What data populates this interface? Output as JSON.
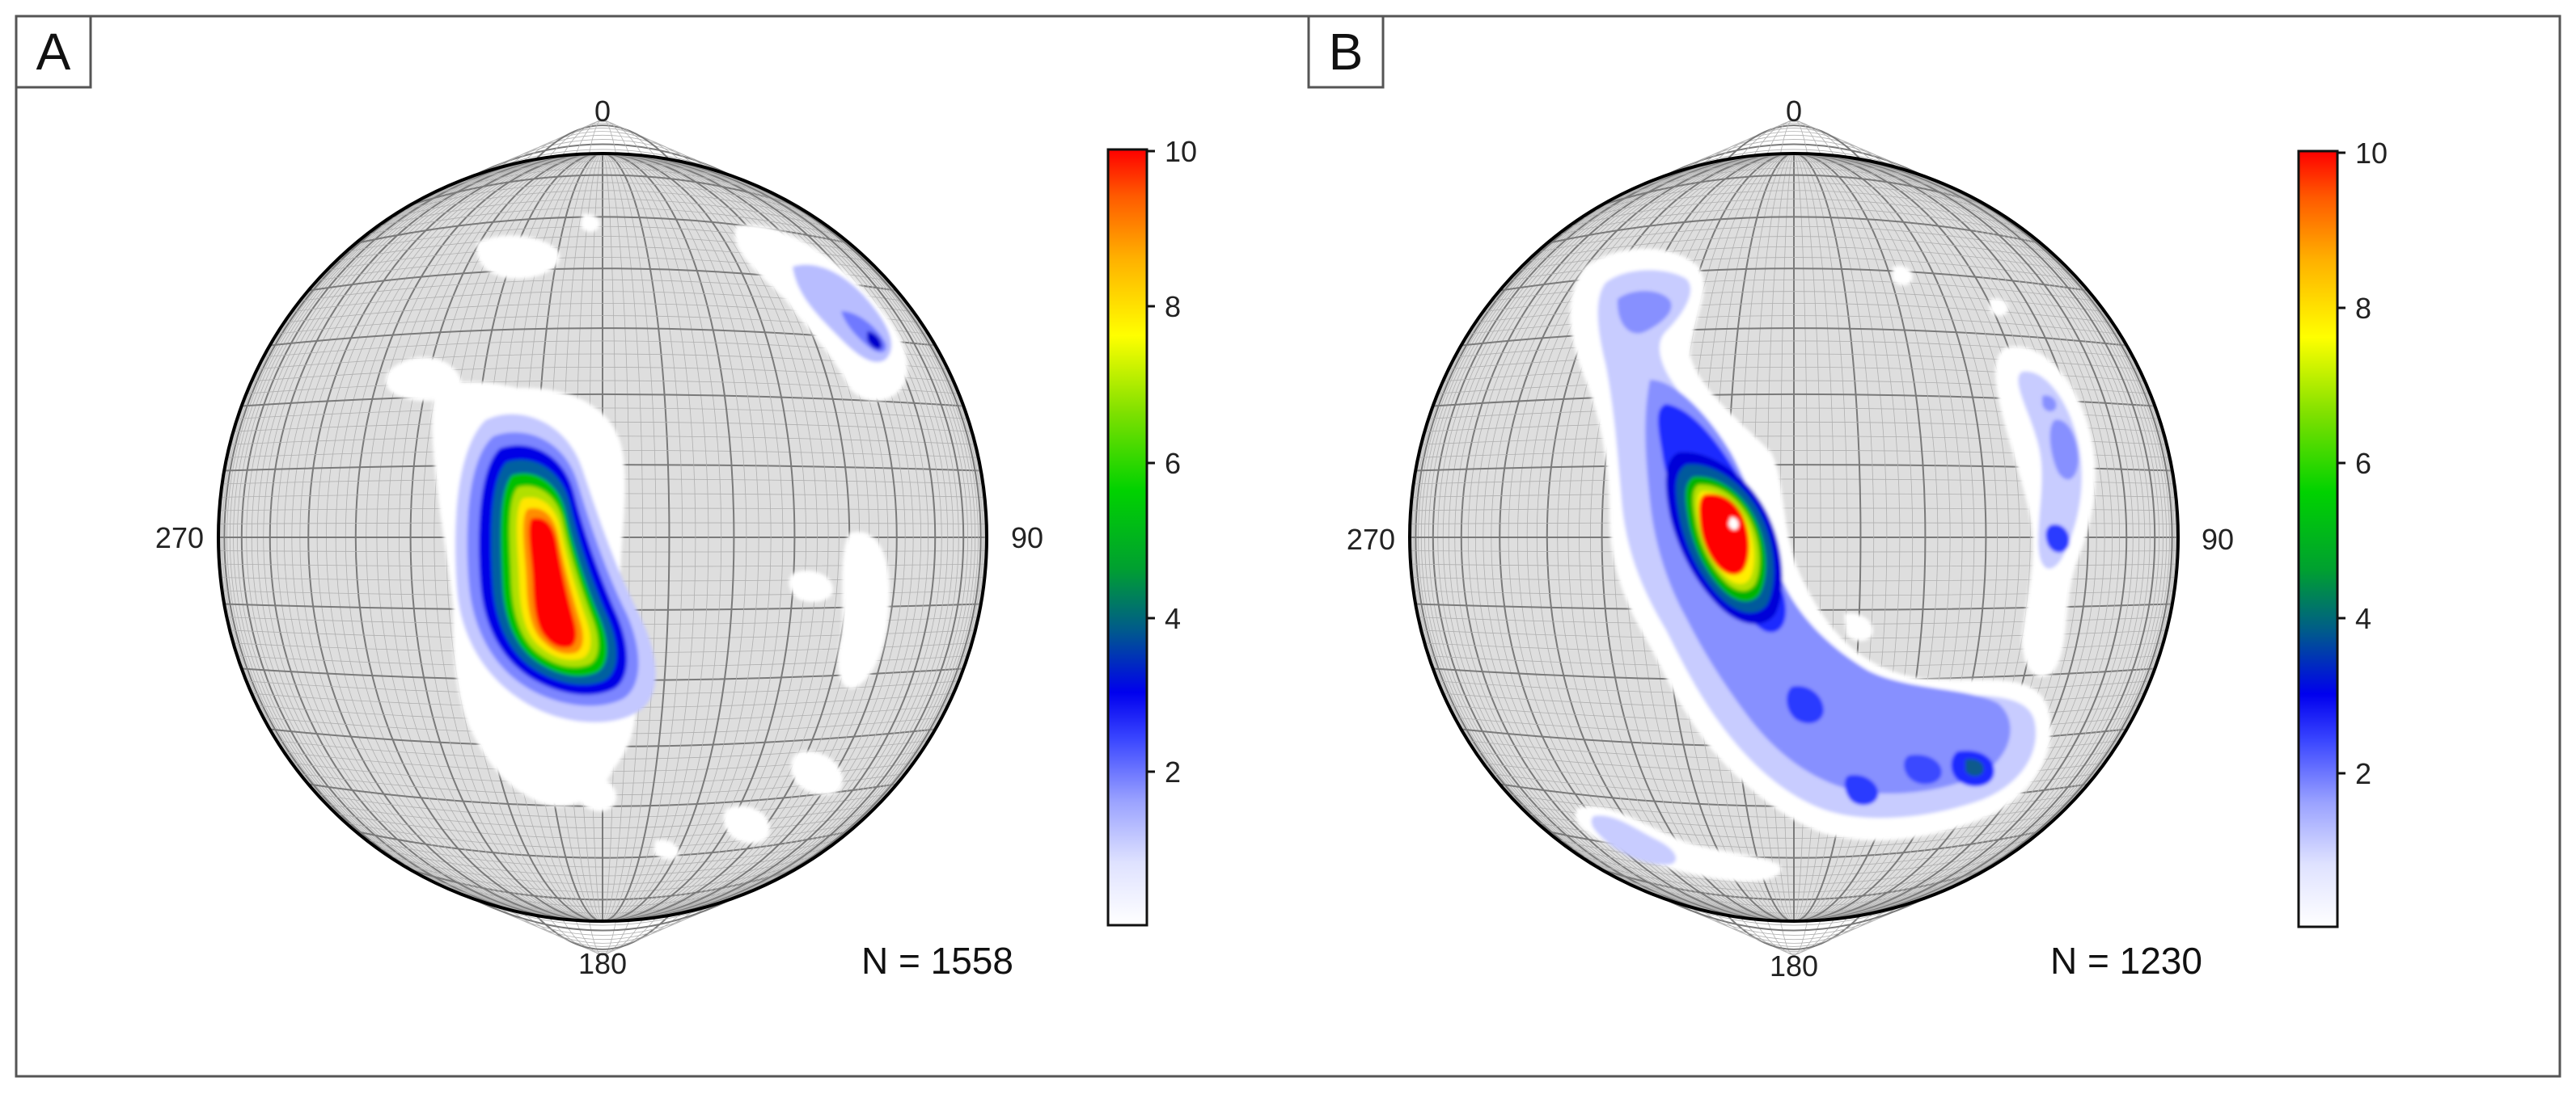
{
  "figure": {
    "panels": [
      {
        "id": "A",
        "label": "A",
        "n_label": "N = 1558",
        "directions": {
          "north": "0",
          "east": "90",
          "south": "180",
          "west": "270"
        },
        "colorbar_ticks": [
          "2",
          "4",
          "6",
          "8",
          "10"
        ]
      },
      {
        "id": "B",
        "label": "B",
        "n_label": "N = 1230",
        "directions": {
          "north": "0",
          "east": "90",
          "south": "180",
          "west": "270"
        },
        "colorbar_ticks": [
          "2",
          "4",
          "6",
          "8",
          "10"
        ]
      }
    ]
  },
  "colors": {
    "scale": [
      "#ffffff",
      "#c8ccff",
      "#9aa2ff",
      "#5560ff",
      "#0000ee",
      "#0040b0",
      "#008c4a",
      "#00d200",
      "#7ee000",
      "#ffff00",
      "#ffb000",
      "#ff5a00",
      "#ff0000"
    ],
    "net_background": "#d9d9d9",
    "net_lines": "#8a8a8a",
    "outline": "#000000"
  }
}
